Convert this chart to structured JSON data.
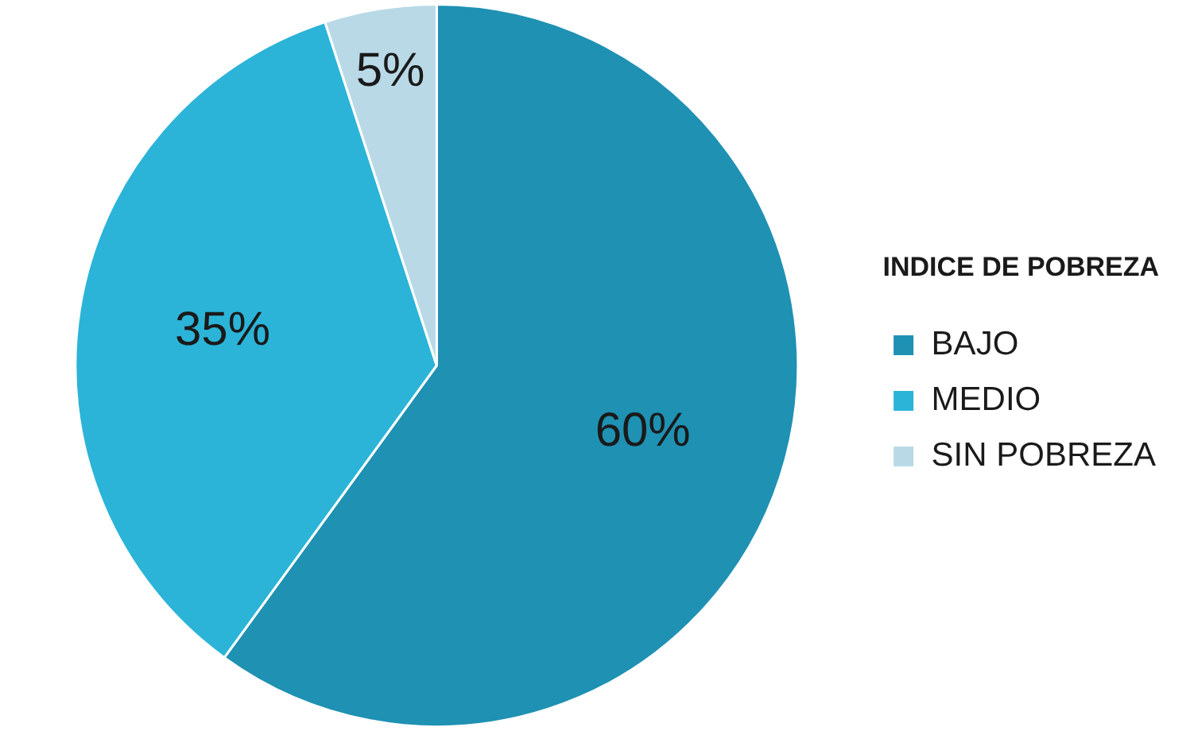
{
  "chart_data": {
    "type": "pie",
    "legend_title": "INDICE DE POBREZA",
    "categories": [
      "BAJO",
      "MEDIO",
      "SIN POBREZA"
    ],
    "values": [
      60,
      35,
      5
    ],
    "colors": [
      "#1f91b3",
      "#2bb4d8",
      "#b9d9e7"
    ],
    "value_labels": [
      "60%",
      "35%",
      "5%"
    ],
    "legend": "right"
  }
}
